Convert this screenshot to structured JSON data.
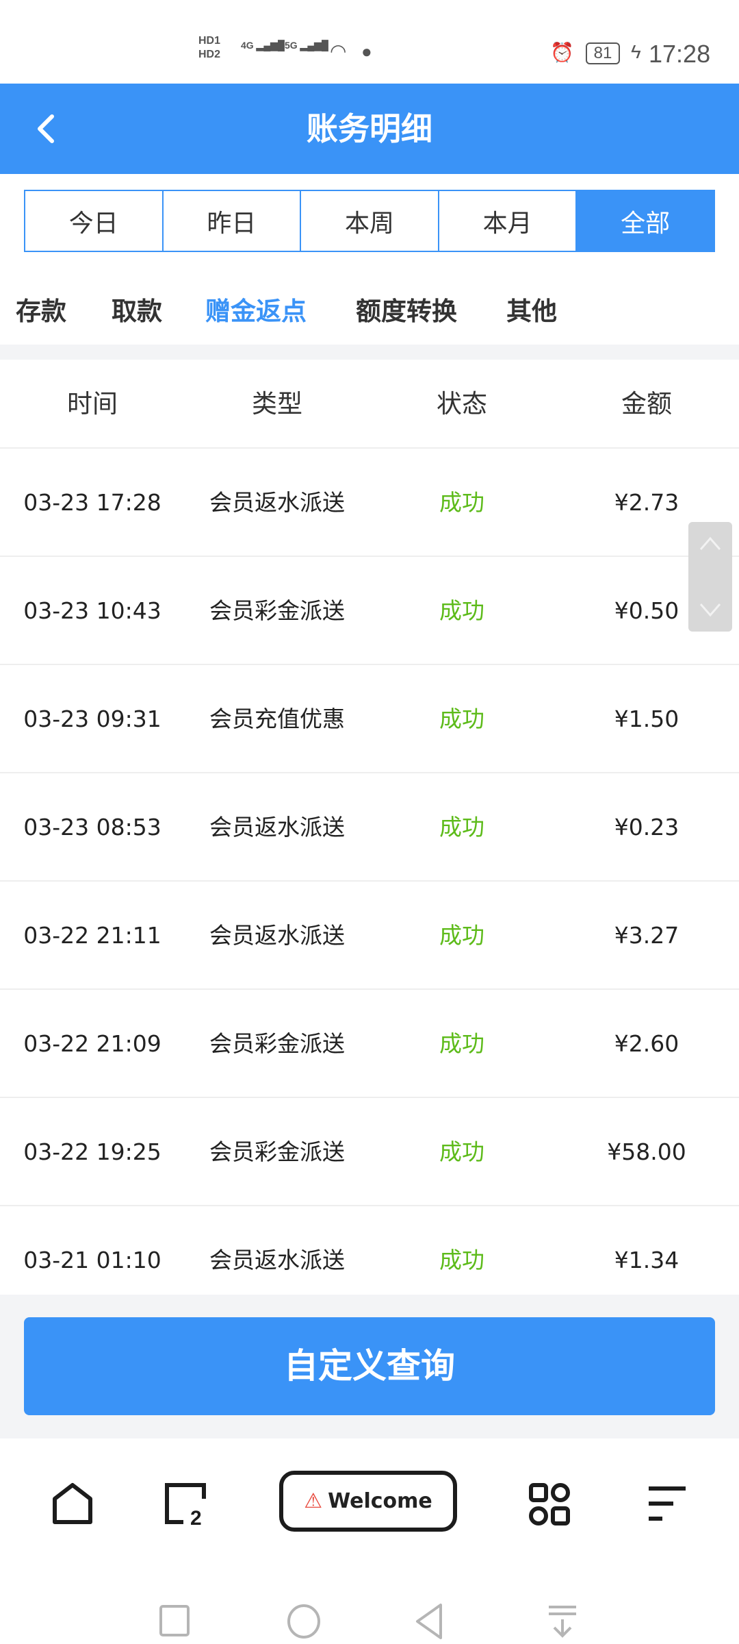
{
  "status_bar": {
    "time": "17:28",
    "battery": "81",
    "sim1": "HD1",
    "sim2": "HD2",
    "net1": "4G",
    "net2": "5G"
  },
  "header": {
    "title": "账务明细"
  },
  "date_tabs": [
    {
      "label": "今日"
    },
    {
      "label": "昨日"
    },
    {
      "label": "本周"
    },
    {
      "label": "本月"
    },
    {
      "label": "全部",
      "active": true
    }
  ],
  "category_tabs": [
    {
      "label": "存款"
    },
    {
      "label": "取款"
    },
    {
      "label": "赠金返点",
      "active": true
    },
    {
      "label": "额度转换"
    },
    {
      "label": "其他"
    }
  ],
  "table": {
    "columns": [
      "时间",
      "类型",
      "状态",
      "金额"
    ],
    "rows": [
      {
        "time": "03-23 17:28",
        "type": "会员返水派送",
        "status": "成功",
        "amount": "¥2.73"
      },
      {
        "time": "03-23 10:43",
        "type": "会员彩金派送",
        "status": "成功",
        "amount": "¥0.50"
      },
      {
        "time": "03-23 09:31",
        "type": "会员充值优惠",
        "status": "成功",
        "amount": "¥1.50"
      },
      {
        "time": "03-23 08:53",
        "type": "会员返水派送",
        "status": "成功",
        "amount": "¥0.23"
      },
      {
        "time": "03-22 21:11",
        "type": "会员返水派送",
        "status": "成功",
        "amount": "¥3.27"
      },
      {
        "time": "03-22 21:09",
        "type": "会员彩金派送",
        "status": "成功",
        "amount": "¥2.60"
      },
      {
        "time": "03-22 19:25",
        "type": "会员彩金派送",
        "status": "成功",
        "amount": "¥58.00"
      },
      {
        "time": "03-21 01:10",
        "type": "会员返水派送",
        "status": "成功",
        "amount": "¥1.34"
      }
    ]
  },
  "query_button": {
    "label": "自定义查询"
  },
  "bottom_nav": {
    "welcome_label": "Welcome",
    "tab_count": "2"
  },
  "colors": {
    "primary": "#3a93f7",
    "success": "#5dbb1a",
    "warning": "#e8483c"
  }
}
